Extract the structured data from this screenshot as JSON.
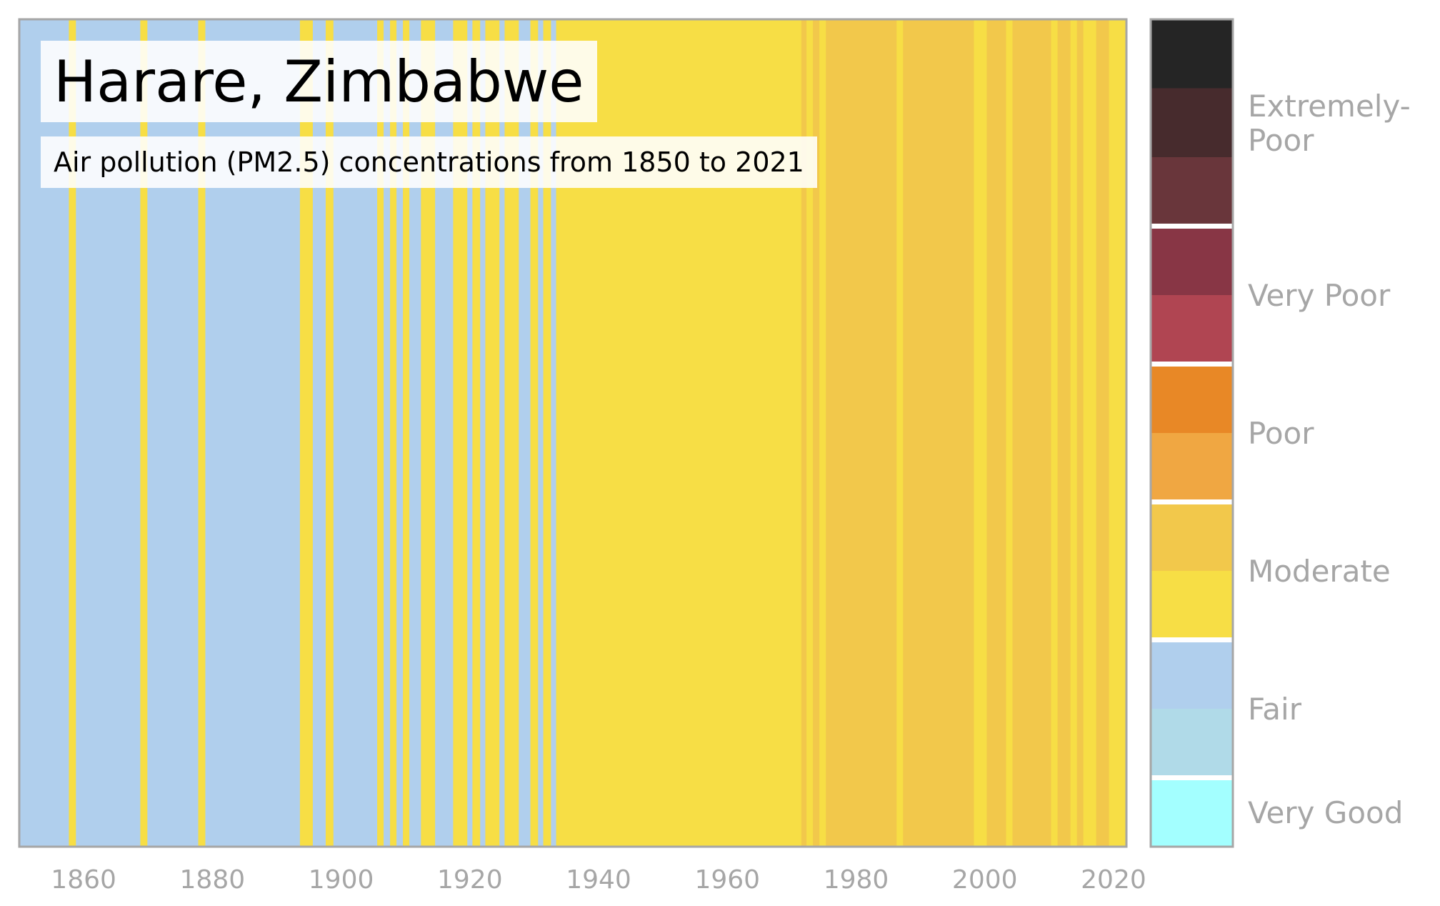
{
  "chart_data": {
    "type": "heatmap",
    "title": "Harare, Zimbabwe",
    "subtitle": "Air pollution (PM2.5) concentrations from 1850 to 2021",
    "x_axis": {
      "range": [
        1850,
        2022
      ],
      "ticks": [
        1860,
        1880,
        1900,
        1920,
        1940,
        1960,
        1980,
        2000,
        2020
      ]
    },
    "palette": {
      "fair": "#b0cfed",
      "moderate_low": "#f7de45",
      "moderate_high": "#f2c84b"
    },
    "stripes": [
      {
        "start": 1850,
        "end": 1857.7,
        "level": "fair"
      },
      {
        "start": 1857.7,
        "end": 1858.8,
        "level": "moderate_low"
      },
      {
        "start": 1858.8,
        "end": 1868.8,
        "level": "fair"
      },
      {
        "start": 1868.8,
        "end": 1869.9,
        "level": "moderate_low"
      },
      {
        "start": 1869.9,
        "end": 1877.8,
        "level": "fair"
      },
      {
        "start": 1877.8,
        "end": 1878.9,
        "level": "moderate_low"
      },
      {
        "start": 1878.9,
        "end": 1893.6,
        "level": "fair"
      },
      {
        "start": 1893.6,
        "end": 1895.6,
        "level": "moderate_low"
      },
      {
        "start": 1895.6,
        "end": 1897.6,
        "level": "fair"
      },
      {
        "start": 1897.6,
        "end": 1898.8,
        "level": "moderate_low"
      },
      {
        "start": 1898.8,
        "end": 1905.6,
        "level": "fair"
      },
      {
        "start": 1905.6,
        "end": 1906.6,
        "level": "moderate_low"
      },
      {
        "start": 1906.6,
        "end": 1907.6,
        "level": "fair"
      },
      {
        "start": 1907.6,
        "end": 1908.6,
        "level": "moderate_low"
      },
      {
        "start": 1908.6,
        "end": 1909.6,
        "level": "fair"
      },
      {
        "start": 1909.6,
        "end": 1910.6,
        "level": "moderate_low"
      },
      {
        "start": 1910.6,
        "end": 1912.4,
        "level": "fair"
      },
      {
        "start": 1912.4,
        "end": 1914.6,
        "level": "moderate_low"
      },
      {
        "start": 1914.6,
        "end": 1917.4,
        "level": "fair"
      },
      {
        "start": 1917.4,
        "end": 1919.6,
        "level": "moderate_low"
      },
      {
        "start": 1919.6,
        "end": 1920.4,
        "level": "fair"
      },
      {
        "start": 1920.4,
        "end": 1921.6,
        "level": "moderate_low"
      },
      {
        "start": 1921.6,
        "end": 1922.4,
        "level": "fair"
      },
      {
        "start": 1922.4,
        "end": 1924.6,
        "level": "moderate_low"
      },
      {
        "start": 1924.6,
        "end": 1925.4,
        "level": "fair"
      },
      {
        "start": 1925.4,
        "end": 1927.6,
        "level": "moderate_low"
      },
      {
        "start": 1927.6,
        "end": 1929.4,
        "level": "fair"
      },
      {
        "start": 1929.4,
        "end": 1930.6,
        "level": "moderate_low"
      },
      {
        "start": 1930.6,
        "end": 1931.4,
        "level": "fair"
      },
      {
        "start": 1931.4,
        "end": 1932.6,
        "level": "moderate_low"
      },
      {
        "start": 1932.6,
        "end": 1933.4,
        "level": "fair"
      },
      {
        "start": 1933.4,
        "end": 1971.5,
        "level": "moderate_low"
      },
      {
        "start": 1971.5,
        "end": 1972.3,
        "level": "moderate_high"
      },
      {
        "start": 1972.3,
        "end": 1973.3,
        "level": "moderate_low"
      },
      {
        "start": 1973.3,
        "end": 1974.3,
        "level": "moderate_high"
      },
      {
        "start": 1974.3,
        "end": 1975.3,
        "level": "moderate_low"
      },
      {
        "start": 1975.3,
        "end": 1986.3,
        "level": "moderate_high"
      },
      {
        "start": 1986.3,
        "end": 1987.3,
        "level": "moderate_low"
      },
      {
        "start": 1987.3,
        "end": 1998.3,
        "level": "moderate_high"
      },
      {
        "start": 1998.3,
        "end": 2000.3,
        "level": "moderate_low"
      },
      {
        "start": 2000.3,
        "end": 2003.3,
        "level": "moderate_high"
      },
      {
        "start": 2003.3,
        "end": 2004.3,
        "level": "moderate_low"
      },
      {
        "start": 2004.3,
        "end": 2010.3,
        "level": "moderate_high"
      },
      {
        "start": 2010.3,
        "end": 2011.3,
        "level": "moderate_low"
      },
      {
        "start": 2011.3,
        "end": 2013.3,
        "level": "moderate_high"
      },
      {
        "start": 2013.3,
        "end": 2014.3,
        "level": "moderate_low"
      },
      {
        "start": 2014.3,
        "end": 2015.3,
        "level": "moderate_high"
      },
      {
        "start": 2015.3,
        "end": 2017.3,
        "level": "moderate_low"
      },
      {
        "start": 2017.3,
        "end": 2019.3,
        "level": "moderate_high"
      },
      {
        "start": 2019.3,
        "end": 2022,
        "level": "moderate_low"
      }
    ],
    "legend": {
      "swatches": [
        {
          "color": "#252525",
          "weight": 1
        },
        {
          "color": "#472b2d",
          "weight": 1
        },
        {
          "color": "#69363b",
          "weight": 1
        },
        {
          "color": "#883645",
          "weight": 1
        },
        {
          "color": "#b04552",
          "weight": 1
        },
        {
          "color": "#e88826",
          "weight": 1
        },
        {
          "color": "#f0a742",
          "weight": 1
        },
        {
          "color": "#f2c84b",
          "weight": 1
        },
        {
          "color": "#f7de45",
          "weight": 1
        },
        {
          "color": "#b0cfed",
          "weight": 1
        },
        {
          "color": "#b0dae8",
          "weight": 1
        },
        {
          "color": "#a3ffff",
          "weight": 1
        }
      ],
      "separators_after_swatch": [
        3,
        5,
        7,
        9,
        11
      ],
      "categories": [
        {
          "label": "Extremely-\nPoor",
          "lines": [
            "Extremely-",
            "Poor"
          ],
          "center_swatch": 1.5
        },
        {
          "label": "Very Poor",
          "lines": [
            "Very Poor"
          ],
          "center_swatch": 4.0
        },
        {
          "label": "Poor",
          "lines": [
            "Poor"
          ],
          "center_swatch": 6.0
        },
        {
          "label": "Moderate",
          "lines": [
            "Moderate"
          ],
          "center_swatch": 8.0
        },
        {
          "label": "Fair",
          "lines": [
            "Fair"
          ],
          "center_swatch": 10.0
        },
        {
          "label": "Very Good",
          "lines": [
            "Very Good"
          ],
          "center_swatch": 11.5
        }
      ]
    }
  }
}
